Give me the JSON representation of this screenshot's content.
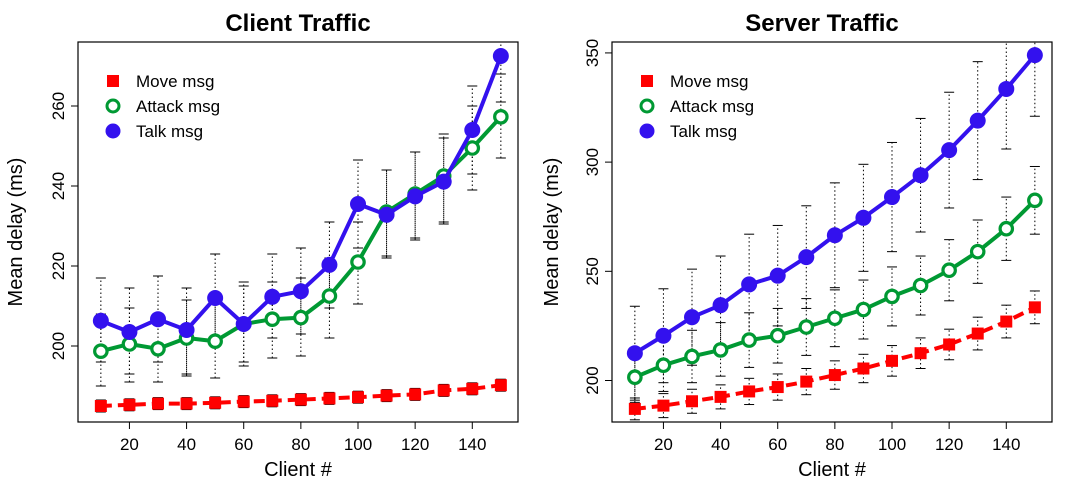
{
  "chart_data": [
    {
      "type": "line",
      "title": "Client Traffic",
      "xlabel": "Client #",
      "ylabel": "Mean delay (ms)",
      "xlim": [
        2,
        156
      ],
      "ylim": [
        181,
        276
      ],
      "x_ticks": [
        20,
        40,
        60,
        80,
        100,
        120,
        140
      ],
      "y_ticks": [
        200,
        220,
        240,
        260
      ],
      "legend_position": "top-left",
      "x": [
        10,
        20,
        30,
        40,
        50,
        60,
        70,
        80,
        90,
        100,
        110,
        120,
        130,
        140,
        150
      ],
      "series": [
        {
          "name": "Move msg",
          "marker": "square",
          "color": "#ff0000",
          "line_style": "dashed",
          "values": [
            185,
            185.3,
            185.6,
            185.6,
            185.8,
            186.1,
            186.3,
            186.6,
            186.9,
            187.2,
            187.6,
            187.9,
            188.9,
            189.3,
            190.2
          ],
          "error_low": [
            183.5,
            183.8,
            184.1,
            184.1,
            184.3,
            184.6,
            184.8,
            185.1,
            185.4,
            185.7,
            186.1,
            186.4,
            187.4,
            187.8,
            188.7
          ],
          "error_high": [
            186.5,
            186.8,
            187.1,
            187.1,
            187.3,
            187.6,
            187.8,
            188.1,
            188.4,
            188.7,
            189.1,
            189.4,
            190.4,
            190.8,
            191.7
          ]
        },
        {
          "name": "Attack msg",
          "marker": "open-circle",
          "color": "#009933",
          "line_style": "solid",
          "values": [
            198.7,
            200.5,
            199.3,
            202,
            201.2,
            205.5,
            206.7,
            207.1,
            212.5,
            221,
            233.5,
            238,
            242.5,
            249.5,
            257.3
          ],
          "error_low": [
            190,
            191,
            191,
            192.5,
            192,
            196,
            197,
            197.5,
            202,
            210.5,
            222.5,
            227,
            231,
            239,
            247
          ],
          "error_high": [
            208,
            209.5,
            208,
            211.5,
            210.5,
            215,
            216,
            217,
            222,
            231,
            244,
            248.5,
            253,
            260,
            268
          ]
        },
        {
          "name": "Talk msg",
          "marker": "filled-circle",
          "color": "#3311ee",
          "line_style": "solid",
          "values": [
            206.3,
            203.5,
            206.7,
            204,
            212,
            205.5,
            212.3,
            213.7,
            220.3,
            235.5,
            232.8,
            237.4,
            241.1,
            254,
            272.5
          ],
          "error_low": [
            196,
            193,
            196,
            193,
            201.5,
            195,
            202,
            203,
            209.5,
            224.5,
            222,
            226.5,
            230.5,
            243,
            261
          ],
          "error_high": [
            217,
            214.5,
            217.5,
            214.5,
            223,
            216,
            223,
            224.5,
            231,
            246.5,
            244,
            248.5,
            252,
            265,
            284
          ]
        }
      ]
    },
    {
      "type": "line",
      "title": "Server Traffic",
      "xlabel": "Client #",
      "ylabel": "Mean delay (ms)",
      "xlim": [
        2,
        156
      ],
      "ylim": [
        181,
        355
      ],
      "x_ticks": [
        20,
        40,
        60,
        80,
        100,
        120,
        140
      ],
      "y_ticks": [
        200,
        250,
        300,
        350
      ],
      "legend_position": "top-left",
      "x": [
        10,
        20,
        30,
        40,
        50,
        60,
        70,
        80,
        90,
        100,
        110,
        120,
        130,
        140,
        150
      ],
      "series": [
        {
          "name": "Move msg",
          "marker": "square",
          "color": "#ff0000",
          "line_style": "dashed",
          "values": [
            187,
            188.5,
            190.5,
            192.5,
            195,
            197,
            199.5,
            202.5,
            205.5,
            209,
            212.5,
            216.5,
            221.5,
            227,
            233.5
          ],
          "error_low": [
            182,
            183,
            185,
            187,
            189,
            191,
            193.5,
            196,
            199,
            202,
            205.5,
            209.5,
            214,
            219.5,
            226
          ],
          "error_high": [
            192,
            194,
            196,
            198,
            201,
            203,
            205.5,
            209,
            212,
            216,
            219.5,
            223.5,
            229,
            234.5,
            241
          ]
        },
        {
          "name": "Attack msg",
          "marker": "open-circle",
          "color": "#009933",
          "line_style": "solid",
          "values": [
            201.5,
            207,
            211,
            214,
            218.5,
            220.5,
            224.5,
            228.5,
            232.5,
            238.5,
            243.5,
            250.5,
            259,
            269.5,
            282.5
          ],
          "error_low": [
            190,
            195,
            199,
            202,
            206,
            208,
            211.5,
            215.5,
            219,
            225,
            230,
            236.5,
            244.5,
            255,
            267
          ],
          "error_high": [
            213,
            219,
            223,
            226.5,
            231,
            233,
            237.5,
            241.5,
            246,
            252,
            257,
            264.5,
            273.5,
            284,
            298
          ]
        },
        {
          "name": "Talk msg",
          "marker": "filled-circle",
          "color": "#3311ee",
          "line_style": "solid",
          "values": [
            212.5,
            220.5,
            229,
            234.5,
            244,
            248,
            256.5,
            266.5,
            274.5,
            284,
            294,
            305.5,
            319,
            333.5,
            349
          ],
          "error_low": [
            191,
            199,
            207,
            212,
            221,
            225,
            233,
            242.5,
            250,
            259,
            268,
            279,
            292,
            306,
            321
          ],
          "error_high": [
            234,
            242,
            251,
            257,
            267,
            271,
            280,
            290.5,
            299,
            309,
            320,
            332,
            346,
            361,
            377
          ]
        }
      ]
    }
  ]
}
